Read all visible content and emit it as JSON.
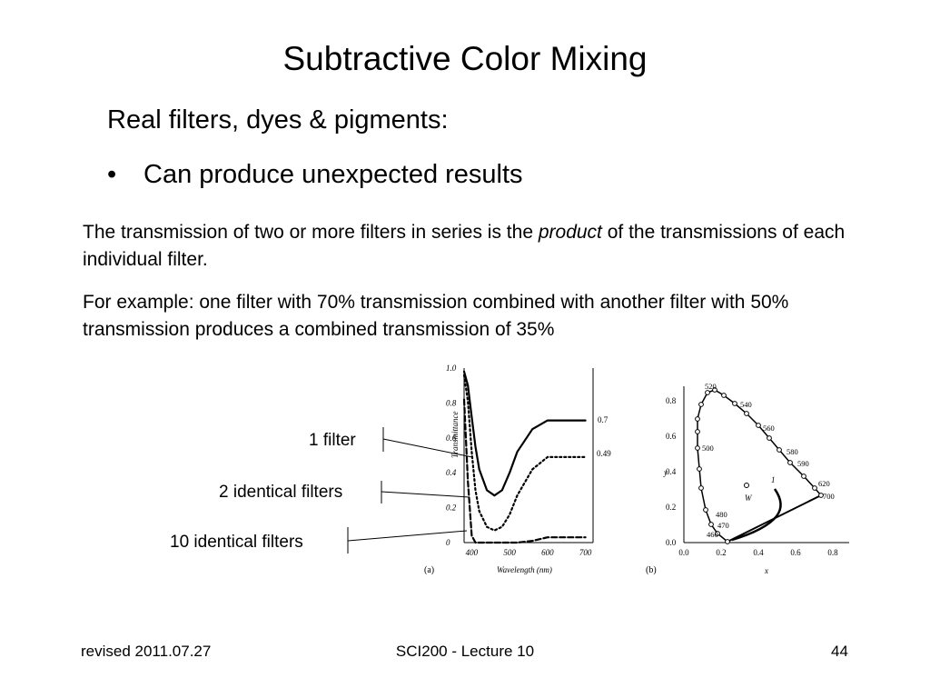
{
  "slide": {
    "title": "Subtractive Color Mixing",
    "heading": "Real filters, dyes & pigments:",
    "bullet_marker": "•",
    "bullet": "Can produce unexpected results",
    "para1_pre": "The transmission of two or more filters in series is the ",
    "para1_emph": "product",
    "para1_post": " of the transmissions of each individual filter.",
    "para2": "For example: one filter with 70% transmission combined with another filter with 50% transmission produces a combined transmission of 35%",
    "callouts": [
      "1 filter",
      "2 identical filters",
      "10 identical filters"
    ]
  },
  "figure_a": {
    "panel_label": "(a)",
    "ylabel": "Transmittance",
    "xlabel": "Wavelength (nm)",
    "y_ticks": [
      "1.0",
      "0.8",
      "0.6",
      "0.4",
      "0.2",
      "0"
    ],
    "x_ticks": [
      "400",
      "500",
      "600",
      "700"
    ],
    "end_labels": [
      "0.7",
      "0.49"
    ]
  },
  "figure_b": {
    "panel_label": "(b)",
    "xlabel": "x",
    "ylabel": "y",
    "x_ticks": [
      "0.0",
      "0.2",
      "0.4",
      "0.6",
      "0.8"
    ],
    "y_ticks": [
      "0.8",
      "0.6",
      "0.4",
      "0.2",
      "0.0"
    ],
    "wavelength_labels": [
      "520",
      "540",
      "560",
      "580",
      "590",
      "620",
      "700",
      "500",
      "480",
      "470",
      "460"
    ],
    "white_point_label": "W",
    "curve_label": "1"
  },
  "chart_data": {
    "type": "line",
    "title": "",
    "xlabel": "Wavelength (nm)",
    "ylabel": "Transmittance",
    "xlim": [
      380,
      720
    ],
    "ylim": [
      0,
      1.0
    ],
    "x": [
      380,
      390,
      400,
      410,
      420,
      440,
      460,
      480,
      500,
      520,
      560,
      600,
      650,
      700
    ],
    "series": [
      {
        "name": "1 filter",
        "values": [
          0.98,
          0.9,
          0.72,
          0.55,
          0.42,
          0.3,
          0.27,
          0.3,
          0.4,
          0.52,
          0.65,
          0.7,
          0.7,
          0.7
        ]
      },
      {
        "name": "2 identical filters",
        "values": [
          0.96,
          0.81,
          0.52,
          0.3,
          0.18,
          0.09,
          0.07,
          0.09,
          0.16,
          0.27,
          0.42,
          0.49,
          0.49,
          0.49
        ]
      },
      {
        "name": "10 identical filters",
        "values": [
          0.82,
          0.35,
          0.04,
          0.0,
          0.0,
          0.0,
          0.0,
          0.0,
          0.0,
          0.0,
          0.01,
          0.03,
          0.03,
          0.03
        ]
      }
    ]
  },
  "footer": {
    "left": "revised 2011.07.27",
    "center": "SCI200 - Lecture 10",
    "right": "44"
  }
}
